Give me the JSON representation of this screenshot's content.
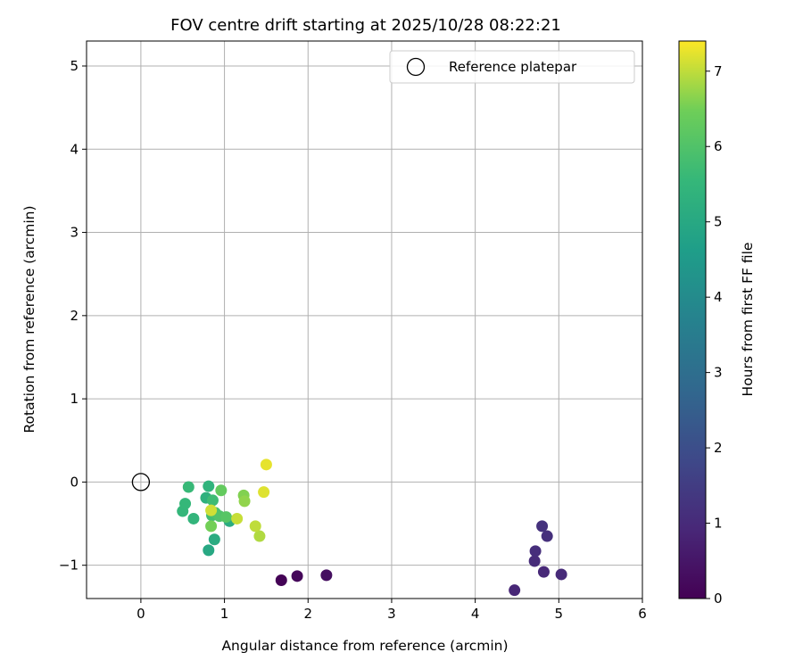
{
  "chart_data": {
    "type": "scatter",
    "title": "FOV centre drift starting at 2025/10/28 08:22:21",
    "xlabel": "Angular distance from reference (arcmin)",
    "ylabel": "Rotation from reference (arcmin)",
    "xlim": [
      -0.65,
      6.0
    ],
    "ylim": [
      -1.4,
      5.3
    ],
    "xticks": [
      0,
      1,
      2,
      3,
      4,
      5,
      6
    ],
    "yticks": [
      -1,
      0,
      1,
      2,
      3,
      4,
      5
    ],
    "xtick_labels": [
      "0",
      "1",
      "2",
      "3",
      "4",
      "5",
      "6"
    ],
    "ytick_labels": [
      "−1",
      "0",
      "1",
      "2",
      "3",
      "4",
      "5"
    ],
    "grid": true,
    "legend": {
      "location": "top-right",
      "entries": [
        "Reference platepar"
      ]
    },
    "reference_point": {
      "x": 0,
      "y": 0,
      "label": "Reference platepar"
    },
    "colorbar": {
      "label": "Hours from first FF file",
      "colormap": "viridis",
      "range": [
        0,
        7.4
      ],
      "ticks": [
        0,
        1,
        2,
        3,
        4,
        5,
        6,
        7
      ],
      "tick_labels": [
        "0",
        "1",
        "2",
        "3",
        "4",
        "5",
        "6",
        "7"
      ]
    },
    "points": [
      {
        "x": 1.68,
        "y": -1.18,
        "hours": 0.05
      },
      {
        "x": 1.87,
        "y": -1.13,
        "hours": 0.15
      },
      {
        "x": 2.22,
        "y": -1.12,
        "hours": 0.3
      },
      {
        "x": 4.47,
        "y": -1.3,
        "hours": 0.9
      },
      {
        "x": 4.82,
        "y": -1.08,
        "hours": 0.95
      },
      {
        "x": 5.03,
        "y": -1.11,
        "hours": 1.0
      },
      {
        "x": 4.71,
        "y": -0.95,
        "hours": 1.05
      },
      {
        "x": 4.72,
        "y": -0.83,
        "hours": 1.1
      },
      {
        "x": 4.86,
        "y": -0.65,
        "hours": 1.15
      },
      {
        "x": 4.8,
        "y": -0.53,
        "hours": 1.2
      },
      {
        "x": 0.81,
        "y": -0.82,
        "hours": 5.0
      },
      {
        "x": 0.88,
        "y": -0.69,
        "hours": 5.1
      },
      {
        "x": 1.06,
        "y": -0.47,
        "hours": 5.15
      },
      {
        "x": 0.78,
        "y": -0.19,
        "hours": 5.3
      },
      {
        "x": 0.81,
        "y": -0.05,
        "hours": 5.4
      },
      {
        "x": 0.63,
        "y": -0.44,
        "hours": 5.45
      },
      {
        "x": 0.5,
        "y": -0.35,
        "hours": 5.5
      },
      {
        "x": 0.53,
        "y": -0.26,
        "hours": 5.55
      },
      {
        "x": 0.57,
        "y": -0.06,
        "hours": 5.6
      },
      {
        "x": 0.86,
        "y": -0.22,
        "hours": 5.7
      },
      {
        "x": 0.85,
        "y": -0.4,
        "hours": 5.8
      },
      {
        "x": 0.89,
        "y": -0.37,
        "hours": 5.9
      },
      {
        "x": 0.94,
        "y": -0.41,
        "hours": 6.0
      },
      {
        "x": 1.02,
        "y": -0.42,
        "hours": 6.1
      },
      {
        "x": 0.96,
        "y": -0.1,
        "hours": 6.3
      },
      {
        "x": 0.84,
        "y": -0.53,
        "hours": 6.5
      },
      {
        "x": 1.23,
        "y": -0.16,
        "hours": 6.6
      },
      {
        "x": 1.24,
        "y": -0.23,
        "hours": 6.7
      },
      {
        "x": 1.42,
        "y": -0.65,
        "hours": 6.9
      },
      {
        "x": 1.37,
        "y": -0.53,
        "hours": 7.0
      },
      {
        "x": 1.15,
        "y": -0.44,
        "hours": 7.05
      },
      {
        "x": 0.84,
        "y": -0.34,
        "hours": 7.1
      },
      {
        "x": 1.47,
        "y": -0.12,
        "hours": 7.2
      },
      {
        "x": 1.5,
        "y": 0.21,
        "hours": 7.25
      }
    ]
  }
}
